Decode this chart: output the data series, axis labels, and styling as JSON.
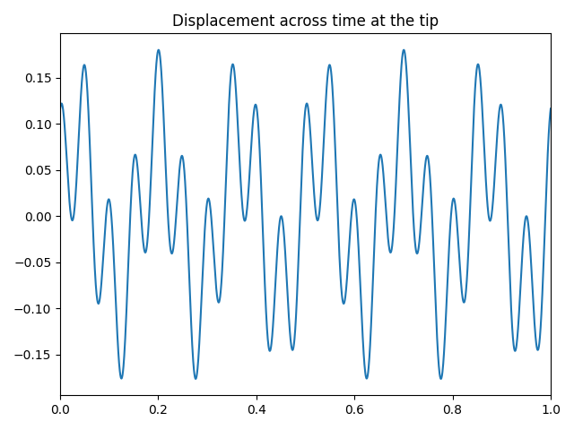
{
  "title": "Displacement across time at the tip",
  "xlim": [
    0.0,
    1.0
  ],
  "line_color": "#1f77b4",
  "line_width": 1.5,
  "figsize": [
    6.4,
    4.8
  ],
  "dpi": 100,
  "freq1": 20.0,
  "freq2": 6.0,
  "amp1": 0.09,
  "amp2": 0.09,
  "phase1": 1.5,
  "phase2": 0.3,
  "n_points": 2000
}
